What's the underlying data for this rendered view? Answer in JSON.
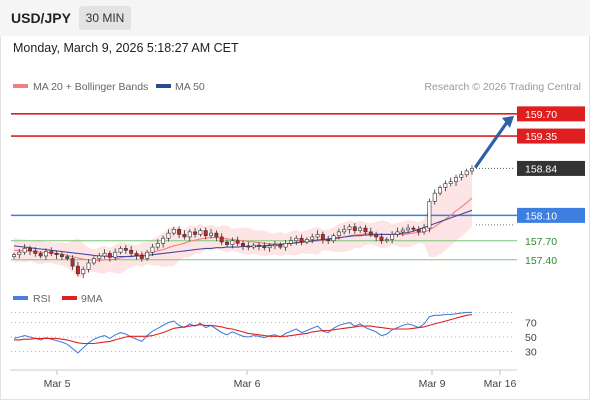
{
  "header": {
    "symbol": "USD/JPY",
    "timeframe": "30 MIN",
    "datetime": "Monday, March 9, 2026 5:18:27 AM CET"
  },
  "colors": {
    "resistance": "#dd1f1f",
    "support_blue": "#3c7fe0",
    "support_green": "#7cc77c",
    "current_price_bg": "#333333",
    "bull_candle": "#ffffff",
    "bear_candle": "#cc2222",
    "ma20": "#f08080",
    "ma50": "#4a4aa0",
    "bollinger_fill": "#fde1e1",
    "rsi": "#4a7fdd",
    "rsi_ma": "#dd2222",
    "arrow": "#2f5fa8"
  },
  "chart_data": [
    {
      "type": "candlestick",
      "title": "USD/JPY",
      "legend": [
        "MA 20 + Bollinger Bands",
        "MA 50"
      ],
      "legend_placement": "top-left",
      "credit": "Research © 2026 Trading Central",
      "x_tick_labels": [
        "Mar 5",
        "Mar 6",
        "Mar 9",
        "Mar 16"
      ],
      "ylim": [
        157.05,
        159.95
      ],
      "current_price": 158.84,
      "levels": [
        {
          "label": "159.70",
          "value": 159.7,
          "kind": "resistance"
        },
        {
          "label": "159.35",
          "value": 159.35,
          "kind": "resistance"
        },
        {
          "label": "158.84",
          "value": 158.84,
          "kind": "current"
        },
        {
          "label": "158.10",
          "value": 158.1,
          "kind": "support_blue"
        },
        {
          "label": "157.70",
          "value": 157.7,
          "kind": "support_green"
        },
        {
          "label": "157.40",
          "value": 157.4,
          "kind": "support_green"
        }
      ],
      "closes": [
        157.48,
        157.52,
        157.58,
        157.54,
        157.5,
        157.46,
        157.53,
        157.5,
        157.48,
        157.45,
        157.42,
        157.3,
        157.18,
        157.25,
        157.35,
        157.42,
        157.46,
        157.5,
        157.44,
        157.52,
        157.58,
        157.55,
        157.5,
        157.47,
        157.42,
        157.52,
        157.6,
        157.66,
        157.74,
        157.82,
        157.88,
        157.8,
        157.76,
        157.84,
        157.8,
        157.86,
        157.78,
        157.82,
        157.76,
        157.68,
        157.64,
        157.7,
        157.66,
        157.62,
        157.6,
        157.63,
        157.61,
        157.59,
        157.62,
        157.64,
        157.6,
        157.66,
        157.7,
        157.74,
        157.68,
        157.72,
        157.76,
        157.8,
        157.72,
        157.7,
        157.78,
        157.84,
        157.88,
        157.92,
        157.86,
        157.9,
        157.84,
        157.8,
        157.76,
        157.7,
        157.72,
        157.8,
        157.84,
        157.87,
        157.9,
        157.88,
        157.84,
        157.9,
        158.32,
        158.45,
        158.54,
        158.6,
        158.63,
        158.7,
        158.74,
        158.8,
        158.84
      ],
      "ma20": [
        157.55,
        157.55,
        157.54,
        157.54,
        157.53,
        157.52,
        157.52,
        157.51,
        157.5,
        157.49,
        157.47,
        157.45,
        157.43,
        157.41,
        157.4,
        157.39,
        157.39,
        157.4,
        157.4,
        157.41,
        157.43,
        157.45,
        157.46,
        157.47,
        157.48,
        157.5,
        157.52,
        157.54,
        157.56,
        157.59,
        157.62,
        157.64,
        157.66,
        157.69,
        157.71,
        157.73,
        157.74,
        157.75,
        157.75,
        157.74,
        157.73,
        157.72,
        157.71,
        157.7,
        157.69,
        157.68,
        157.67,
        157.66,
        157.65,
        157.65,
        157.65,
        157.65,
        157.66,
        157.67,
        157.67,
        157.68,
        157.69,
        157.7,
        157.71,
        157.71,
        157.72,
        157.74,
        157.76,
        157.78,
        157.79,
        157.8,
        157.81,
        157.81,
        157.81,
        157.8,
        157.8,
        157.8,
        157.8,
        157.8,
        157.81,
        157.82,
        157.83,
        157.84,
        157.87,
        157.92,
        157.98,
        158.04,
        158.1,
        158.17,
        158.23,
        158.3,
        158.37
      ],
      "ma50": [
        157.62,
        157.61,
        157.6,
        157.59,
        157.58,
        157.57,
        157.56,
        157.55,
        157.54,
        157.53,
        157.52,
        157.51,
        157.5,
        157.49,
        157.48,
        157.47,
        157.46,
        157.46,
        157.45,
        157.45,
        157.45,
        157.45,
        157.45,
        157.46,
        157.46,
        157.47,
        157.48,
        157.49,
        157.5,
        157.51,
        157.52,
        157.53,
        157.54,
        157.55,
        157.56,
        157.57,
        157.58,
        157.58,
        157.59,
        157.59,
        157.6,
        157.6,
        157.6,
        157.61,
        157.61,
        157.61,
        157.62,
        157.62,
        157.63,
        157.63,
        157.64,
        157.65,
        157.66,
        157.67,
        157.68,
        157.69,
        157.7,
        157.71,
        157.72,
        157.73,
        157.74,
        157.75,
        157.76,
        157.77,
        157.78,
        157.78,
        157.79,
        157.79,
        157.79,
        157.8,
        157.8,
        157.8,
        157.81,
        157.82,
        157.83,
        157.85,
        157.88,
        157.91,
        157.94,
        157.97,
        158.0,
        158.03,
        158.06,
        158.09,
        158.12,
        158.15,
        158.18
      ],
      "bb_width": 0.16
    },
    {
      "type": "line",
      "title": "",
      "legend": [
        "RSI",
        "9MA"
      ],
      "legend_placement": "top-left",
      "y_tick_labels": [
        "70",
        "50",
        "30"
      ],
      "ylim": [
        10,
        90
      ],
      "rsi": [
        48,
        50,
        52,
        50,
        48,
        46,
        49,
        47,
        45,
        43,
        40,
        34,
        28,
        35,
        42,
        47,
        50,
        52,
        48,
        53,
        56,
        54,
        50,
        47,
        44,
        52,
        58,
        62,
        66,
        70,
        72,
        66,
        63,
        68,
        65,
        69,
        63,
        66,
        61,
        56,
        53,
        57,
        54,
        51,
        50,
        52,
        51,
        49,
        52,
        53,
        50,
        55,
        58,
        61,
        56,
        59,
        62,
        65,
        58,
        56,
        62,
        66,
        68,
        70,
        65,
        68,
        63,
        60,
        57,
        52,
        54,
        60,
        63,
        66,
        68,
        66,
        63,
        68,
        78,
        80,
        80,
        81,
        81,
        82,
        83,
        84,
        84
      ],
      "rsi_ma": [
        46,
        46,
        47,
        47,
        48,
        48,
        48,
        48,
        48,
        47,
        46,
        44,
        42,
        41,
        41,
        41,
        42,
        43,
        44,
        46,
        48,
        50,
        51,
        51,
        51,
        51,
        52,
        54,
        56,
        59,
        62,
        63,
        64,
        65,
        66,
        67,
        66,
        66,
        65,
        64,
        62,
        61,
        59,
        57,
        55,
        54,
        53,
        52,
        51,
        51,
        51,
        51,
        52,
        53,
        54,
        55,
        57,
        58,
        59,
        59,
        60,
        61,
        62,
        63,
        64,
        65,
        65,
        65,
        64,
        63,
        62,
        61,
        61,
        61,
        61,
        62,
        63,
        64,
        66,
        68,
        70,
        72,
        74,
        76,
        78,
        80,
        81
      ]
    }
  ]
}
